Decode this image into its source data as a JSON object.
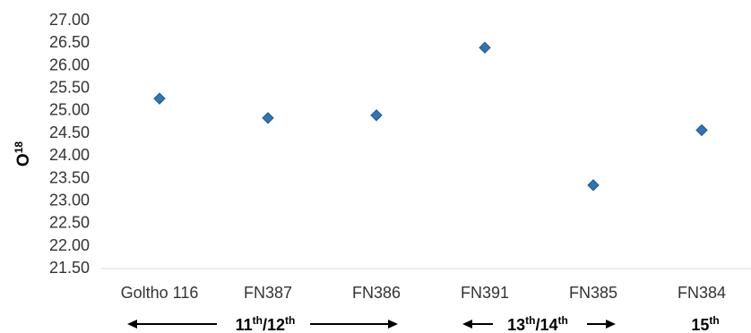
{
  "chart_data": {
    "type": "scatter",
    "title": "",
    "xlabel": "",
    "ylabel": {
      "base": "O",
      "sup": "18"
    },
    "categories": [
      "Goltho 116",
      "FN387",
      "FN386",
      "FN391",
      "FN385",
      "FN384"
    ],
    "values": [
      25.25,
      24.82,
      24.88,
      26.38,
      23.33,
      24.55
    ],
    "ylim": [
      21.5,
      27.0
    ],
    "yticks": [
      "27.00",
      "26.50",
      "26.00",
      "25.50",
      "25.00",
      "24.50",
      "24.00",
      "23.50",
      "23.00",
      "22.50",
      "22.00",
      "21.50"
    ],
    "grid": false,
    "marker": "diamond",
    "colors": {
      "marker": "#2e75b6",
      "marker_edge": "#1f5a8f"
    },
    "periods": [
      {
        "base": "11",
        "sup1": "th",
        "sep": "/",
        "base2": "12",
        "sup2": "th",
        "arrows": "both",
        "from": 0,
        "to": 2
      },
      {
        "base": "13",
        "sup1": "th",
        "sep": "/",
        "base2": "14",
        "sup2": "th",
        "arrows": "both",
        "from": 3,
        "to": 4
      },
      {
        "base": "15",
        "sup1": "th",
        "sep": "",
        "base2": "",
        "sup2": "",
        "arrows": "none",
        "from": 5,
        "to": 5
      }
    ]
  }
}
